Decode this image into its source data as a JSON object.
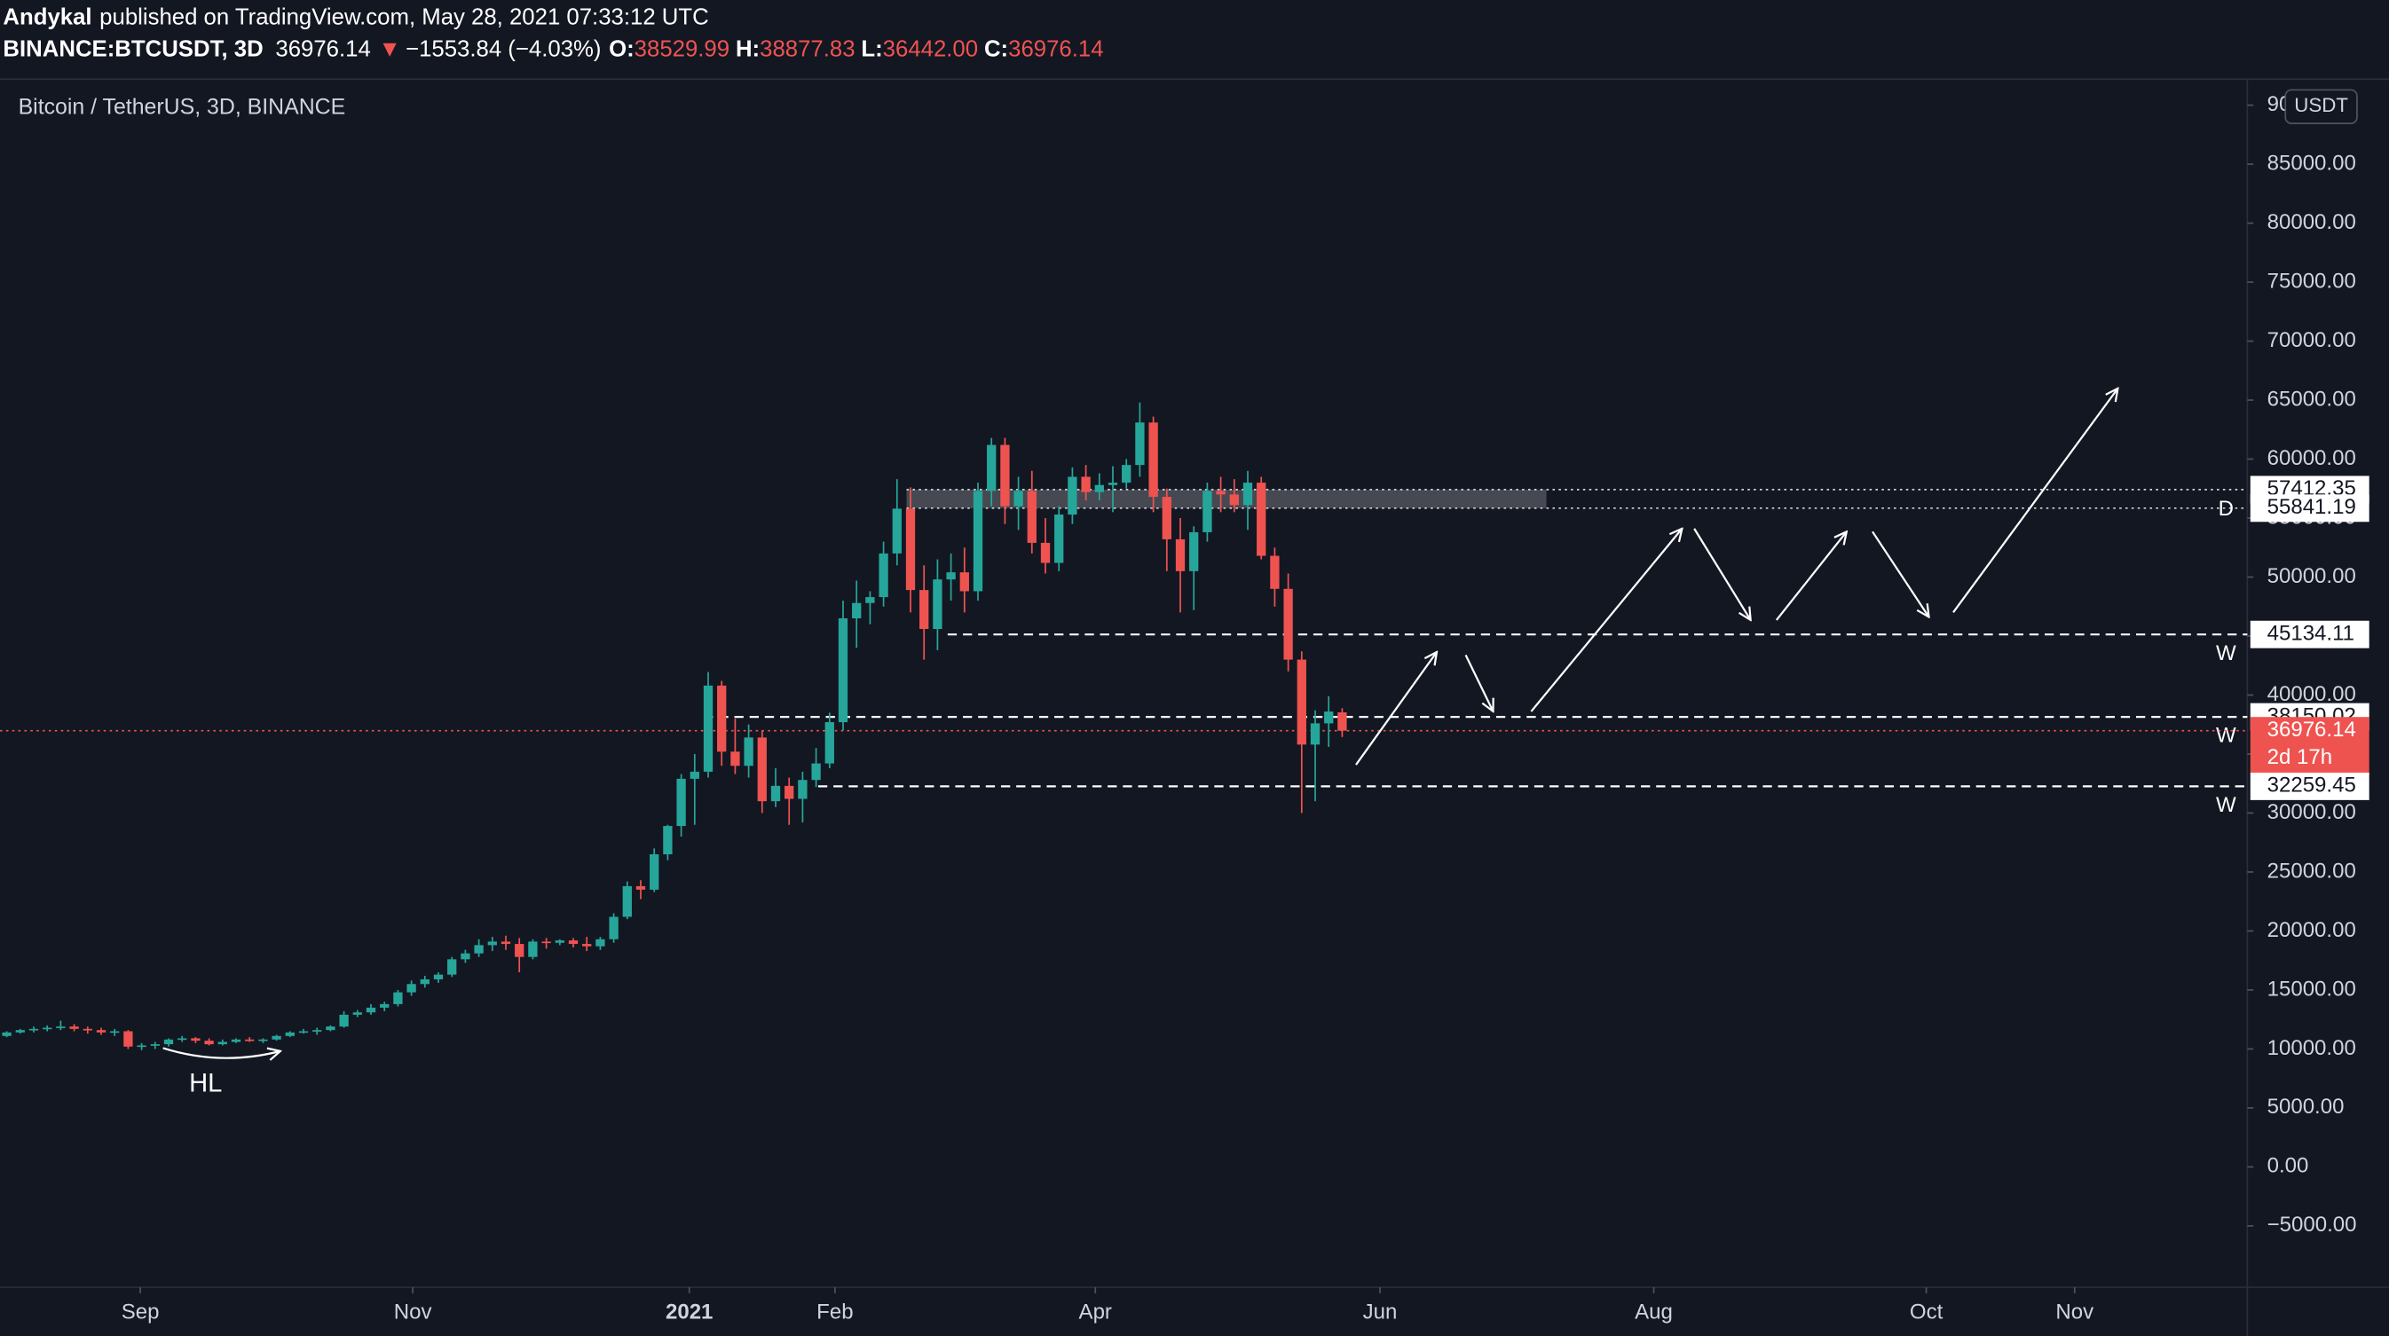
{
  "header": {
    "author": "Andykal",
    "published": "published on TradingView.com, May 28, 2021 07:33:12 UTC",
    "symbol": "BINANCE:BTCUSDT, 3D",
    "price": "36976.14",
    "arrow": "▼",
    "change": "−1553.84 (−4.03%)",
    "ohlc": [
      {
        "label": "O:",
        "value": "38529.99"
      },
      {
        "label": "H:",
        "value": "38877.83"
      },
      {
        "label": "L:",
        "value": "36442.00"
      },
      {
        "label": "C:",
        "value": "36976.14"
      }
    ]
  },
  "chart_data": {
    "type": "candlestick",
    "title": "Bitcoin / TetherUS, 3D, BINANCE",
    "currency": "USDT",
    "up_color": "#26a69a",
    "down_color": "#ef5350",
    "candles": [
      [
        11100,
        11500,
        11000,
        11400
      ],
      [
        11400,
        11700,
        11300,
        11600
      ],
      [
        11600,
        11900,
        11400,
        11700
      ],
      [
        11700,
        12000,
        11500,
        11800
      ],
      [
        11800,
        12400,
        11600,
        11900
      ],
      [
        11900,
        12100,
        11500,
        11700
      ],
      [
        11700,
        11900,
        11300,
        11600
      ],
      [
        11600,
        11800,
        11200,
        11400
      ],
      [
        11400,
        11700,
        11100,
        11500
      ],
      [
        11500,
        11600,
        10000,
        10200
      ],
      [
        10200,
        10500,
        9900,
        10300
      ],
      [
        10300,
        10600,
        10000,
        10400
      ],
      [
        10400,
        10900,
        10200,
        10800
      ],
      [
        10800,
        11100,
        10600,
        10900
      ],
      [
        10900,
        11000,
        10500,
        10700
      ],
      [
        10700,
        10900,
        10300,
        10400
      ],
      [
        10400,
        10800,
        10300,
        10600
      ],
      [
        10600,
        10900,
        10500,
        10800
      ],
      [
        10800,
        11000,
        10600,
        10700
      ],
      [
        10700,
        10900,
        10500,
        10800
      ],
      [
        10800,
        11200,
        10700,
        11100
      ],
      [
        11100,
        11500,
        11000,
        11400
      ],
      [
        11400,
        11700,
        11300,
        11500
      ],
      [
        11500,
        11800,
        11200,
        11600
      ],
      [
        11600,
        12000,
        11500,
        11900
      ],
      [
        11900,
        13200,
        11800,
        12900
      ],
      [
        12900,
        13300,
        12700,
        13100
      ],
      [
        13100,
        13800,
        12900,
        13500
      ],
      [
        13500,
        14000,
        13200,
        13800
      ],
      [
        13800,
        15000,
        13600,
        14800
      ],
      [
        14800,
        15800,
        14500,
        15500
      ],
      [
        15500,
        16200,
        15200,
        15900
      ],
      [
        15900,
        16500,
        15600,
        16300
      ],
      [
        16300,
        17800,
        16100,
        17600
      ],
      [
        17600,
        18400,
        17300,
        18100
      ],
      [
        18100,
        19300,
        17800,
        18800
      ],
      [
        18800,
        19500,
        18300,
        19100
      ],
      [
        19100,
        19600,
        18400,
        18900
      ],
      [
        18900,
        19400,
        16500,
        17800
      ],
      [
        17800,
        19300,
        17600,
        19100
      ],
      [
        19100,
        19400,
        18500,
        19000
      ],
      [
        19000,
        19300,
        18800,
        19200
      ],
      [
        19200,
        19400,
        18600,
        18900
      ],
      [
        18900,
        19500,
        18300,
        18700
      ],
      [
        18700,
        19500,
        18400,
        19300
      ],
      [
        19300,
        21500,
        19000,
        21200
      ],
      [
        21200,
        24200,
        21000,
        23800
      ],
      [
        23800,
        24300,
        22700,
        23500
      ],
      [
        23500,
        27000,
        23300,
        26500
      ],
      [
        26500,
        29000,
        26000,
        28900
      ],
      [
        28900,
        33300,
        28000,
        32900
      ],
      [
        32900,
        35000,
        29000,
        33500
      ],
      [
        33500,
        41950,
        33000,
        40800
      ],
      [
        40800,
        41200,
        34000,
        35200
      ],
      [
        35200,
        38000,
        33300,
        34000
      ],
      [
        34000,
        37500,
        33000,
        36400
      ],
      [
        36400,
        37000,
        30000,
        31000
      ],
      [
        31000,
        33800,
        30500,
        32300
      ],
      [
        32300,
        33000,
        29000,
        31200
      ],
      [
        31200,
        33500,
        29200,
        32800
      ],
      [
        32800,
        35500,
        32200,
        34200
      ],
      [
        34200,
        38500,
        33800,
        37700
      ],
      [
        37700,
        48000,
        37000,
        46500
      ],
      [
        46500,
        49700,
        44000,
        47800
      ],
      [
        47800,
        48800,
        46000,
        48300
      ],
      [
        48300,
        53000,
        47500,
        52000
      ],
      [
        52000,
        58300,
        51000,
        55800
      ],
      [
        55800,
        57600,
        47000,
        48900
      ],
      [
        48900,
        51000,
        43000,
        45600
      ],
      [
        45600,
        51500,
        43800,
        49800
      ],
      [
        49800,
        52000,
        48000,
        50400
      ],
      [
        50400,
        52500,
        47000,
        48800
      ],
      [
        48800,
        58000,
        48000,
        57300
      ],
      [
        57300,
        61800,
        56000,
        61200
      ],
      [
        61200,
        61800,
        54500,
        56000
      ],
      [
        56000,
        58500,
        54000,
        57300
      ],
      [
        57300,
        59000,
        52000,
        52900
      ],
      [
        52900,
        55000,
        50300,
        51200
      ],
      [
        51200,
        56000,
        50500,
        55300
      ],
      [
        55300,
        59300,
        54500,
        58500
      ],
      [
        58500,
        59500,
        56500,
        57200
      ],
      [
        57200,
        58800,
        56500,
        57800
      ],
      [
        57800,
        59400,
        55500,
        58000
      ],
      [
        58000,
        60000,
        57500,
        59500
      ],
      [
        59500,
        64800,
        58500,
        63100
      ],
      [
        63100,
        63600,
        55500,
        56800
      ],
      [
        56800,
        57500,
        50500,
        53200
      ],
      [
        53200,
        55000,
        47000,
        50500
      ],
      [
        50500,
        54300,
        47200,
        53800
      ],
      [
        53800,
        58000,
        53000,
        57300
      ],
      [
        57300,
        58500,
        55500,
        57000
      ],
      [
        57000,
        58300,
        55500,
        56100
      ],
      [
        56100,
        59000,
        54000,
        58000
      ],
      [
        58000,
        58500,
        51500,
        51800
      ],
      [
        51800,
        52500,
        47500,
        49000
      ],
      [
        49000,
        50300,
        42000,
        43000
      ],
      [
        43000,
        43700,
        30000,
        35800
      ],
      [
        35800,
        38700,
        31000,
        37600
      ],
      [
        37600,
        39900,
        35600,
        38600
      ],
      [
        38529.99,
        38877.83,
        36442.0,
        36976.14
      ]
    ],
    "xlim": [
      -0.5,
      166.1
    ],
    "xticks": [
      {
        "value": 9.9,
        "label": "Sep"
      },
      {
        "value": 30.1,
        "label": "Nov"
      },
      {
        "value": 50.6,
        "label": "2021"
      },
      {
        "value": 61.4,
        "label": "Feb"
      },
      {
        "value": 80.7,
        "label": "Apr"
      },
      {
        "value": 101.8,
        "label": "Jun"
      },
      {
        "value": 122.1,
        "label": "Aug"
      },
      {
        "value": 142.3,
        "label": "Oct"
      },
      {
        "value": 153.3,
        "label": "Nov"
      }
    ],
    "ylim": [
      -10200,
      92200
    ],
    "yticks": [
      {
        "value": -5000,
        "label": "−5000.00"
      },
      {
        "value": 0,
        "label": "0.00"
      },
      {
        "value": 5000,
        "label": "5000.00"
      },
      {
        "value": 10000,
        "label": "10000.00"
      },
      {
        "value": 15000,
        "label": "15000.00"
      },
      {
        "value": 20000,
        "label": "20000.00"
      },
      {
        "value": 25000,
        "label": "25000.00"
      },
      {
        "value": 30000,
        "label": "30000.00"
      },
      {
        "value": 35000,
        "label": "35000.00"
      },
      {
        "value": 40000,
        "label": "40000.00"
      },
      {
        "value": 45000,
        "label": "45000.00"
      },
      {
        "value": 50000,
        "label": "50000.00"
      },
      {
        "value": 55000,
        "label": "55000.00"
      },
      {
        "value": 60000,
        "label": "60000.00"
      },
      {
        "value": 65000,
        "label": "65000.00"
      },
      {
        "value": 70000,
        "label": "70000.00"
      },
      {
        "value": 75000,
        "label": "75000.00"
      },
      {
        "value": 80000,
        "label": "80000.00"
      },
      {
        "value": 85000,
        "label": "85000.00"
      },
      {
        "value": 90000,
        "label": "90000.00"
      }
    ],
    "zone": {
      "from": 55841.19,
      "to": 57412.35
    },
    "levels": [
      {
        "value": 57412.35,
        "style": "dotted",
        "color": "#d1d4dc"
      },
      {
        "value": 55841.19,
        "style": "dotted",
        "color": "#d1d4dc",
        "tag": "D"
      },
      {
        "value": 45134.11,
        "style": "dashed",
        "color": "#ffffff",
        "tag": "W"
      },
      {
        "value": 38150.02,
        "style": "dashed",
        "color": "#ffffff",
        "tag": "W"
      },
      {
        "value": 36976.14,
        "style": "dotted",
        "color": "#ef5350",
        "countdown": "2d 17h"
      },
      {
        "value": 32259.45,
        "style": "dashed",
        "color": "#ffffff",
        "tag": "W"
      }
    ],
    "annotation": "HL"
  }
}
